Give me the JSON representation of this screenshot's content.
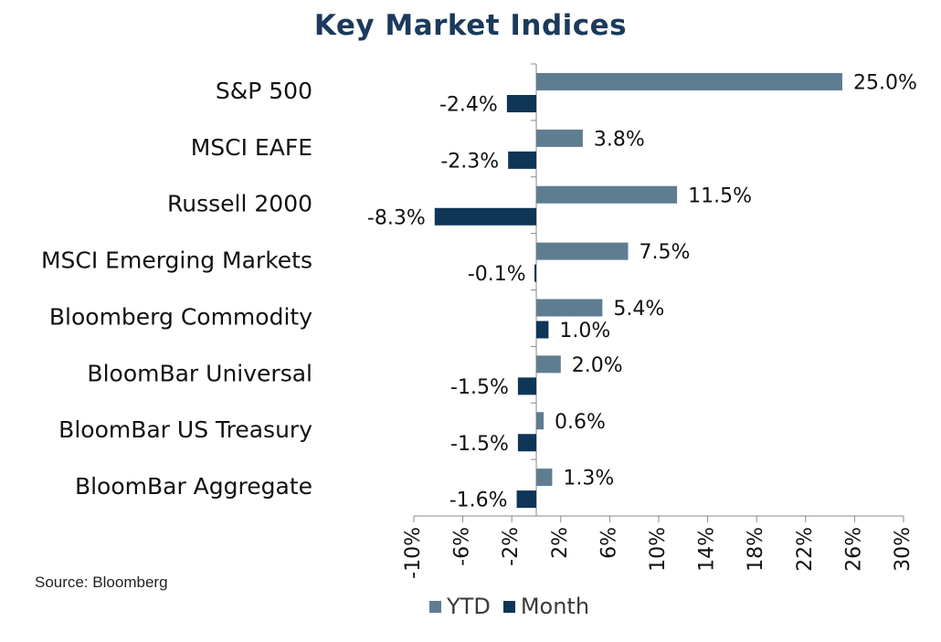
{
  "chart_data": {
    "type": "bar",
    "orientation": "horizontal",
    "title": "Key Market Indices",
    "categories": [
      "S&P 500",
      "MSCI EAFE",
      "Russell 2000",
      "MSCI Emerging Markets",
      "Bloomberg Commodity",
      "BloomBar Universal",
      "BloomBar US Treasury",
      "BloomBar Aggregate"
    ],
    "series": [
      {
        "name": "YTD",
        "color": "#5f7d91",
        "values": [
          25.0,
          3.8,
          11.5,
          7.5,
          5.4,
          2.0,
          0.6,
          1.3
        ],
        "labels": [
          "25.0%",
          "3.8%",
          "11.5%",
          "7.5%",
          "5.4%",
          "2.0%",
          "0.6%",
          "1.3%"
        ]
      },
      {
        "name": "Month",
        "color": "#0f3557",
        "values": [
          -2.4,
          -2.3,
          -8.3,
          -0.1,
          1.0,
          -1.5,
          -1.5,
          -1.6
        ],
        "labels": [
          "-2.4%",
          "-2.3%",
          "-8.3%",
          "-0.1%",
          "1.0%",
          "-1.5%",
          "-1.5%",
          "-1.6%"
        ]
      }
    ],
    "xlim": [
      -10,
      30
    ],
    "xticks": [
      "-10%",
      "-6%",
      "-2%",
      "2%",
      "6%",
      "10%",
      "14%",
      "18%",
      "22%",
      "26%",
      "30%"
    ],
    "xtick_values": [
      -10,
      -6,
      -2,
      2,
      6,
      10,
      14,
      18,
      22,
      26,
      30
    ],
    "grid": false,
    "legend_position": "bottom"
  },
  "source": "Source: Bloomberg",
  "legend": {
    "ytd": "YTD",
    "month": "Month"
  }
}
